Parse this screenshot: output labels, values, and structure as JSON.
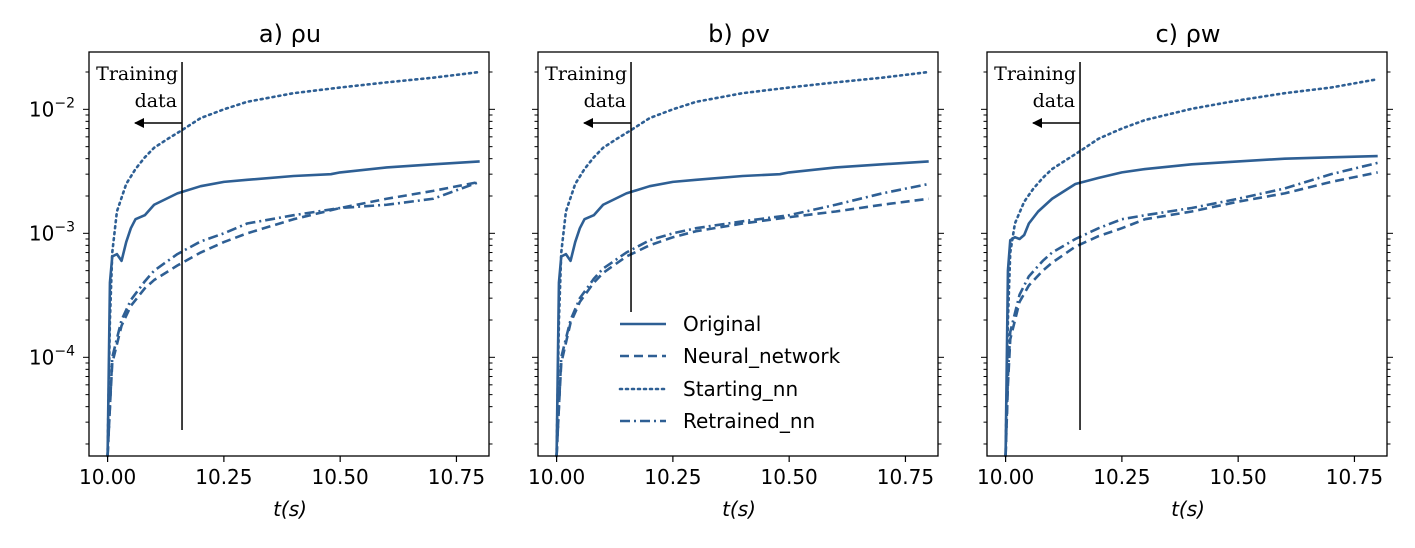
{
  "chart_data": [
    {
      "type": "line",
      "title": "a) ρu",
      "xlabel": "t(s)",
      "ylabel": "",
      "yscale": "log",
      "xlim": [
        9.96,
        10.82
      ],
      "ylim": [
        1.6e-05,
        0.029
      ],
      "xticks": [
        10.0,
        10.25,
        10.5,
        10.75
      ],
      "xtick_labels": [
        "10.00",
        "10.25",
        "10.50",
        "10.75"
      ],
      "yticks": [
        0.0001,
        0.001,
        0.01
      ],
      "ytick_labels": [
        {
          "base": "10",
          "exp": "−4"
        },
        {
          "base": "10",
          "exp": "−3"
        },
        {
          "base": "10",
          "exp": "−2"
        }
      ],
      "annotation": {
        "lines": [
          "Training",
          "data"
        ],
        "x": 10.16
      },
      "series": [
        {
          "name": "Original",
          "x": [
            10.0,
            10.005,
            10.01,
            10.02,
            10.03,
            10.04,
            10.05,
            10.06,
            10.08,
            10.1,
            10.15,
            10.2,
            10.25,
            10.3,
            10.4,
            10.48,
            10.5,
            10.6,
            10.7,
            10.8
          ],
          "values": [
            1.6e-05,
            0.0004,
            0.00065,
            0.00068,
            0.0006,
            0.00085,
            0.0011,
            0.0013,
            0.0014,
            0.0017,
            0.0021,
            0.0024,
            0.0026,
            0.0027,
            0.0029,
            0.003,
            0.0031,
            0.0034,
            0.0036,
            0.0038
          ]
        },
        {
          "name": "Neural_network",
          "x": [
            10.0,
            10.005,
            10.01,
            10.03,
            10.05,
            10.08,
            10.1,
            10.15,
            10.2,
            10.25,
            10.3,
            10.4,
            10.5,
            10.6,
            10.7,
            10.8
          ],
          "values": [
            1.6e-05,
            4e-05,
            9e-05,
            0.00018,
            0.00026,
            0.00036,
            0.00042,
            0.00055,
            0.0007,
            0.00085,
            0.001,
            0.0013,
            0.0016,
            0.0019,
            0.0022,
            0.0026
          ]
        },
        {
          "name": "Starting_nn",
          "x": [
            10.0,
            10.005,
            10.01,
            10.02,
            10.04,
            10.06,
            10.08,
            10.1,
            10.13,
            10.16,
            10.2,
            10.25,
            10.3,
            10.4,
            10.5,
            10.6,
            10.7,
            10.8
          ],
          "values": [
            1.6e-05,
            0.0002,
            0.0007,
            0.0015,
            0.0025,
            0.0033,
            0.0041,
            0.0049,
            0.0058,
            0.0068,
            0.0085,
            0.01,
            0.0115,
            0.0135,
            0.015,
            0.0165,
            0.018,
            0.02
          ]
        },
        {
          "name": "Retrained_nn",
          "x": [
            10.0,
            10.005,
            10.01,
            10.03,
            10.05,
            10.08,
            10.1,
            10.15,
            10.2,
            10.25,
            10.3,
            10.4,
            10.5,
            10.6,
            10.7,
            10.8
          ],
          "values": [
            1.6e-05,
            4e-05,
            0.0001,
            0.0002,
            0.00029,
            0.00041,
            0.0005,
            0.00068,
            0.00086,
            0.001,
            0.0012,
            0.0014,
            0.0016,
            0.0017,
            0.0019,
            0.0026
          ]
        }
      ]
    },
    {
      "type": "line",
      "title": "b) ρv",
      "xlabel": "t(s)",
      "ylabel": "",
      "yscale": "log",
      "xlim": [
        9.96,
        10.82
      ],
      "ylim": [
        1.6e-05,
        0.029
      ],
      "xticks": [
        10.0,
        10.25,
        10.5,
        10.75
      ],
      "xtick_labels": [
        "10.00",
        "10.25",
        "10.50",
        "10.75"
      ],
      "annotation": {
        "lines": [
          "Training",
          "data"
        ],
        "x": 10.16
      },
      "legend": {
        "placement": "lower-center",
        "entries": [
          "Original",
          "Neural_network",
          "Starting_nn",
          "Retrained_nn"
        ]
      },
      "series": [
        {
          "name": "Original",
          "x": [
            10.0,
            10.005,
            10.01,
            10.02,
            10.03,
            10.04,
            10.05,
            10.06,
            10.08,
            10.1,
            10.15,
            10.2,
            10.25,
            10.3,
            10.4,
            10.48,
            10.5,
            10.6,
            10.7,
            10.8
          ],
          "values": [
            1.6e-05,
            0.0004,
            0.00065,
            0.00068,
            0.0006,
            0.00085,
            0.0011,
            0.0013,
            0.0014,
            0.0017,
            0.0021,
            0.0024,
            0.0026,
            0.0027,
            0.0029,
            0.003,
            0.0031,
            0.0034,
            0.0036,
            0.0038
          ]
        },
        {
          "name": "Neural_network",
          "x": [
            10.0,
            10.005,
            10.01,
            10.03,
            10.05,
            10.08,
            10.1,
            10.15,
            10.2,
            10.25,
            10.3,
            10.4,
            10.5,
            10.6,
            10.7,
            10.8
          ],
          "values": [
            1.6e-05,
            4e-05,
            9e-05,
            0.00019,
            0.00028,
            0.0004,
            0.00048,
            0.00065,
            0.0008,
            0.00093,
            0.00104,
            0.0012,
            0.00135,
            0.0015,
            0.0017,
            0.0019
          ]
        },
        {
          "name": "Starting_nn",
          "x": [
            10.0,
            10.005,
            10.01,
            10.02,
            10.04,
            10.06,
            10.08,
            10.1,
            10.13,
            10.16,
            10.2,
            10.25,
            10.3,
            10.4,
            10.5,
            10.6,
            10.7,
            10.8
          ],
          "values": [
            1.6e-05,
            0.0002,
            0.0007,
            0.0015,
            0.0025,
            0.0033,
            0.0041,
            0.0049,
            0.0058,
            0.0068,
            0.0085,
            0.01,
            0.0115,
            0.0135,
            0.015,
            0.0165,
            0.018,
            0.02
          ]
        },
        {
          "name": "Retrained_nn",
          "x": [
            10.0,
            10.005,
            10.01,
            10.03,
            10.05,
            10.08,
            10.1,
            10.15,
            10.2,
            10.25,
            10.3,
            10.4,
            10.5,
            10.6,
            10.7,
            10.8
          ],
          "values": [
            1.6e-05,
            4e-05,
            0.0001,
            0.0002,
            0.0003,
            0.00043,
            0.00052,
            0.0007,
            0.00088,
            0.001,
            0.0011,
            0.00125,
            0.0014,
            0.0017,
            0.0021,
            0.0025
          ]
        }
      ]
    },
    {
      "type": "line",
      "title": "c) ρw",
      "xlabel": "t(s)",
      "ylabel": "",
      "yscale": "log",
      "xlim": [
        9.96,
        10.82
      ],
      "ylim": [
        1.6e-05,
        0.029
      ],
      "xticks": [
        10.0,
        10.25,
        10.5,
        10.75
      ],
      "xtick_labels": [
        "10.00",
        "10.25",
        "10.50",
        "10.75"
      ],
      "annotation": {
        "lines": [
          "Training",
          "data"
        ],
        "x": 10.16
      },
      "series": [
        {
          "name": "Original",
          "x": [
            10.0,
            10.005,
            10.01,
            10.02,
            10.03,
            10.04,
            10.05,
            10.07,
            10.1,
            10.15,
            10.2,
            10.25,
            10.3,
            10.4,
            10.5,
            10.6,
            10.7,
            10.8
          ],
          "values": [
            1.6e-05,
            0.0005,
            0.00088,
            0.00093,
            0.0009,
            0.00097,
            0.0012,
            0.0015,
            0.0019,
            0.0025,
            0.0028,
            0.0031,
            0.0033,
            0.0036,
            0.0038,
            0.004,
            0.0041,
            0.0042
          ]
        },
        {
          "name": "Neural_network",
          "x": [
            10.0,
            10.005,
            10.01,
            10.03,
            10.05,
            10.08,
            10.1,
            10.15,
            10.2,
            10.25,
            10.3,
            10.4,
            10.5,
            10.6,
            10.7,
            10.8
          ],
          "values": [
            1.6e-05,
            6e-05,
            0.00014,
            0.00028,
            0.00038,
            0.0005,
            0.00058,
            0.00078,
            0.00095,
            0.0011,
            0.0013,
            0.0015,
            0.0018,
            0.0021,
            0.0026,
            0.0031
          ]
        },
        {
          "name": "Starting_nn",
          "x": [
            10.0,
            10.005,
            10.01,
            10.02,
            10.04,
            10.06,
            10.08,
            10.1,
            10.13,
            10.16,
            10.2,
            10.25,
            10.3,
            10.4,
            10.5,
            10.6,
            10.7,
            10.8
          ],
          "values": [
            1.6e-05,
            0.0002,
            0.0007,
            0.0012,
            0.0018,
            0.0023,
            0.0028,
            0.0033,
            0.0039,
            0.0046,
            0.0058,
            0.007,
            0.0082,
            0.0101,
            0.0118,
            0.0135,
            0.015,
            0.0175
          ]
        },
        {
          "name": "Retrained_nn",
          "x": [
            10.0,
            10.005,
            10.01,
            10.03,
            10.05,
            10.08,
            10.1,
            10.15,
            10.2,
            10.25,
            10.3,
            10.4,
            10.5,
            10.6,
            10.7,
            10.8
          ],
          "values": [
            1.6e-05,
            7e-05,
            0.00016,
            0.00032,
            0.00045,
            0.0006,
            0.0007,
            0.0009,
            0.0011,
            0.0013,
            0.0014,
            0.0016,
            0.0019,
            0.0023,
            0.003,
            0.0037
          ]
        }
      ]
    }
  ],
  "style": {
    "line_color": "#2e5f94",
    "annotation_color": "#000000"
  }
}
